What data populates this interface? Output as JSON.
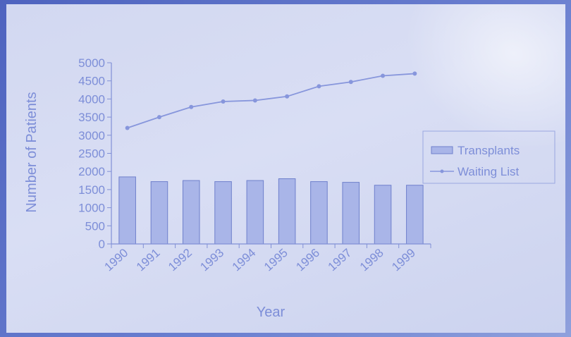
{
  "colors": {
    "bar_fill": "#a9b5e8",
    "bar_stroke": "#6f80cc",
    "line": "#8796dc",
    "axis": "#8190d6",
    "text": "#7d8ed8"
  },
  "chart_data": {
    "type": "bar",
    "categories": [
      "1990",
      "1991",
      "1992",
      "1993",
      "1994",
      "1995",
      "1996",
      "1997",
      "1998",
      "1999"
    ],
    "series": [
      {
        "name": "Transplants",
        "type": "bar",
        "values": [
          1850,
          1720,
          1750,
          1720,
          1750,
          1800,
          1720,
          1700,
          1620,
          1620
        ]
      },
      {
        "name": "Waiting List",
        "type": "line",
        "values": [
          3200,
          3500,
          3780,
          3930,
          3960,
          4070,
          4350,
          4470,
          4640,
          4700
        ]
      }
    ],
    "xlabel": "Year",
    "ylabel": "Number of Patients",
    "ylim": [
      0,
      5000
    ],
    "yticks": [
      0,
      500,
      1000,
      1500,
      2000,
      2500,
      3000,
      3500,
      4000,
      4500,
      5000
    ],
    "grid": false,
    "legend_position": "right"
  }
}
